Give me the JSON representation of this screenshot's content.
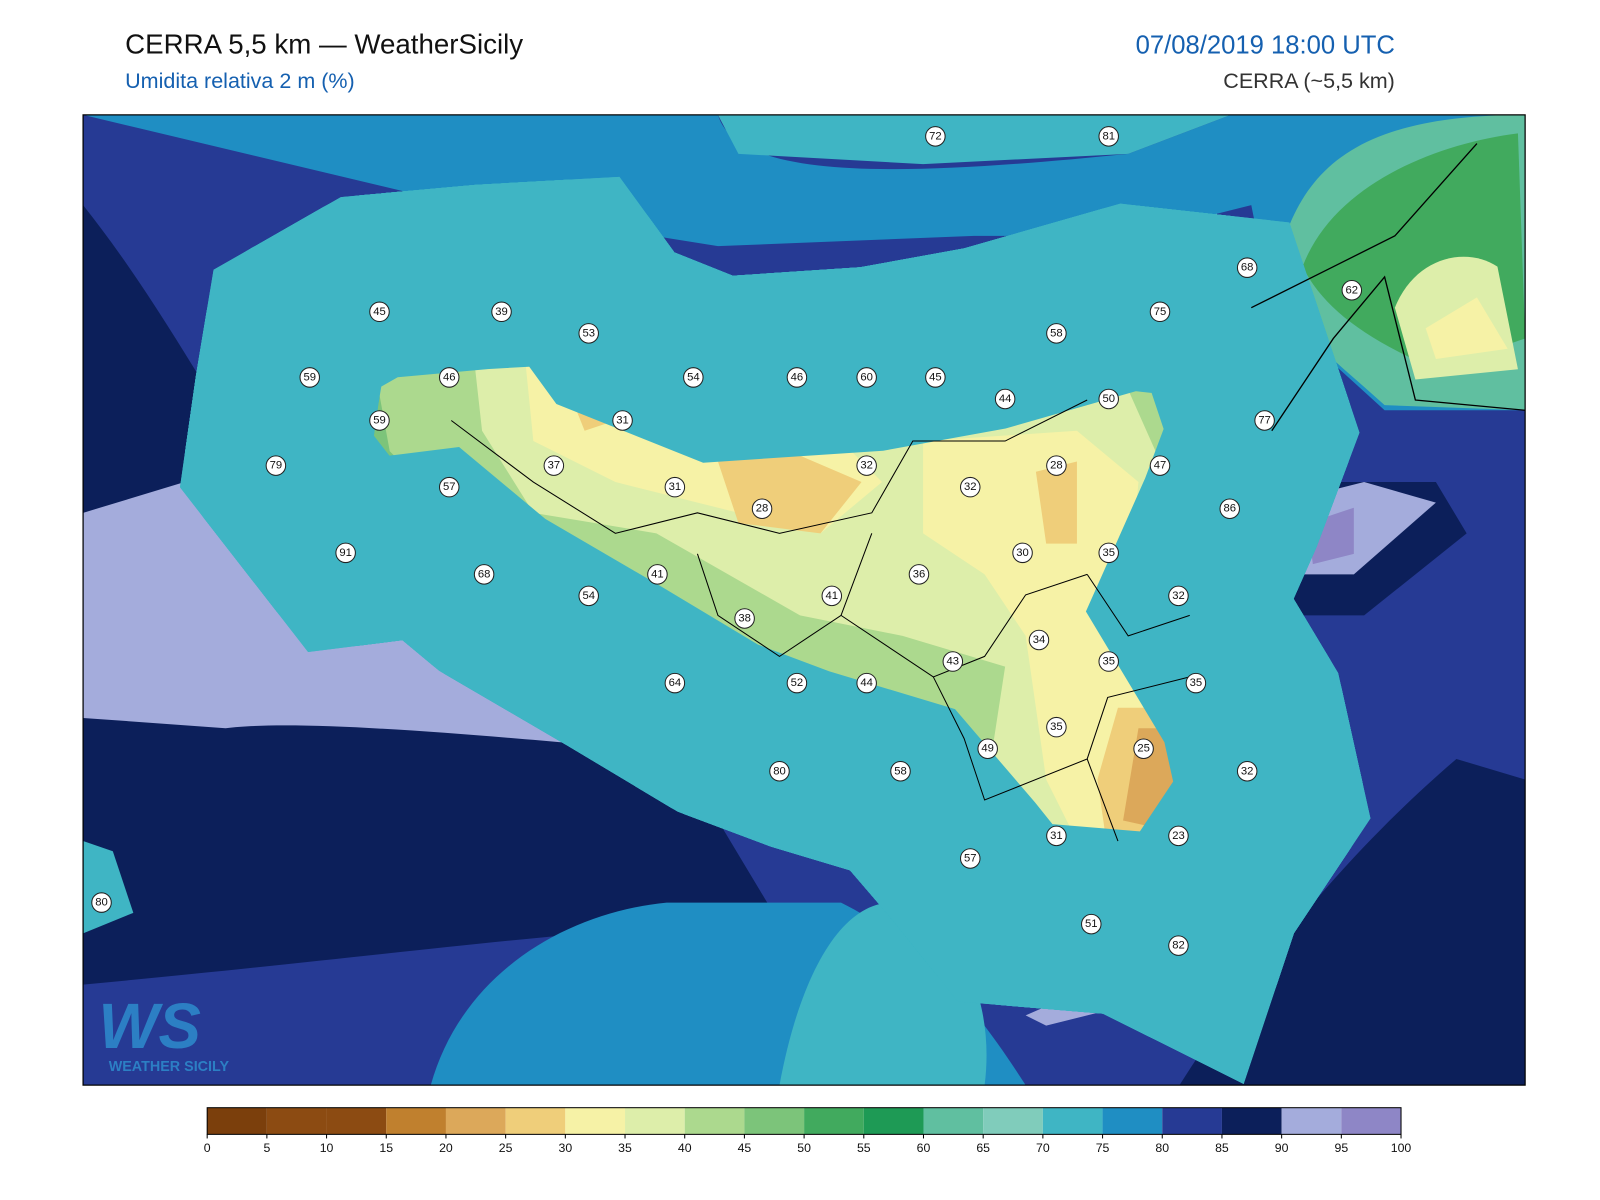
{
  "header": {
    "title": "CERRA 5,5 km — WeatherSicily",
    "subtitle": "Umidita relativa 2 m (%)",
    "datetime": "07/08/2019 18:00 UTC",
    "model": "CERRA (~5,5 km)"
  },
  "logo": {
    "letters": "WS",
    "text": "WEATHER SICILY"
  },
  "stations": [
    72,
    81,
    45,
    39,
    53,
    59,
    46,
    54,
    46,
    60,
    45,
    44,
    58,
    75,
    68,
    62,
    50,
    77,
    59,
    31,
    79,
    37,
    32,
    57,
    31,
    32,
    28,
    47,
    86,
    28,
    91,
    68,
    41,
    36,
    30,
    35,
    54,
    41,
    32,
    38,
    34,
    43,
    35,
    35,
    64,
    52,
    44,
    35,
    49,
    25,
    80,
    58,
    32,
    31,
    23,
    57,
    80,
    51,
    82
  ],
  "colorbar": {
    "ticks": [
      0,
      5,
      10,
      15,
      20,
      25,
      30,
      35,
      40,
      45,
      50,
      55,
      60,
      65,
      70,
      75,
      80,
      85,
      90,
      95,
      100
    ],
    "colors": [
      "#7b3f0c",
      "#8c4b12",
      "#8c4b12",
      "#c0802e",
      "#dca85a",
      "#efce7a",
      "#f6f2a6",
      "#ddeeaa",
      "#acd98e",
      "#7cc47a",
      "#41aa5e",
      "#1e9a55",
      "#60bfa0",
      "#80ccbb",
      "#3fb5c4",
      "#1f8ec3",
      "#263a94",
      "#0c1f5a",
      "#a4acdc",
      "#8e86c6"
    ]
  }
}
